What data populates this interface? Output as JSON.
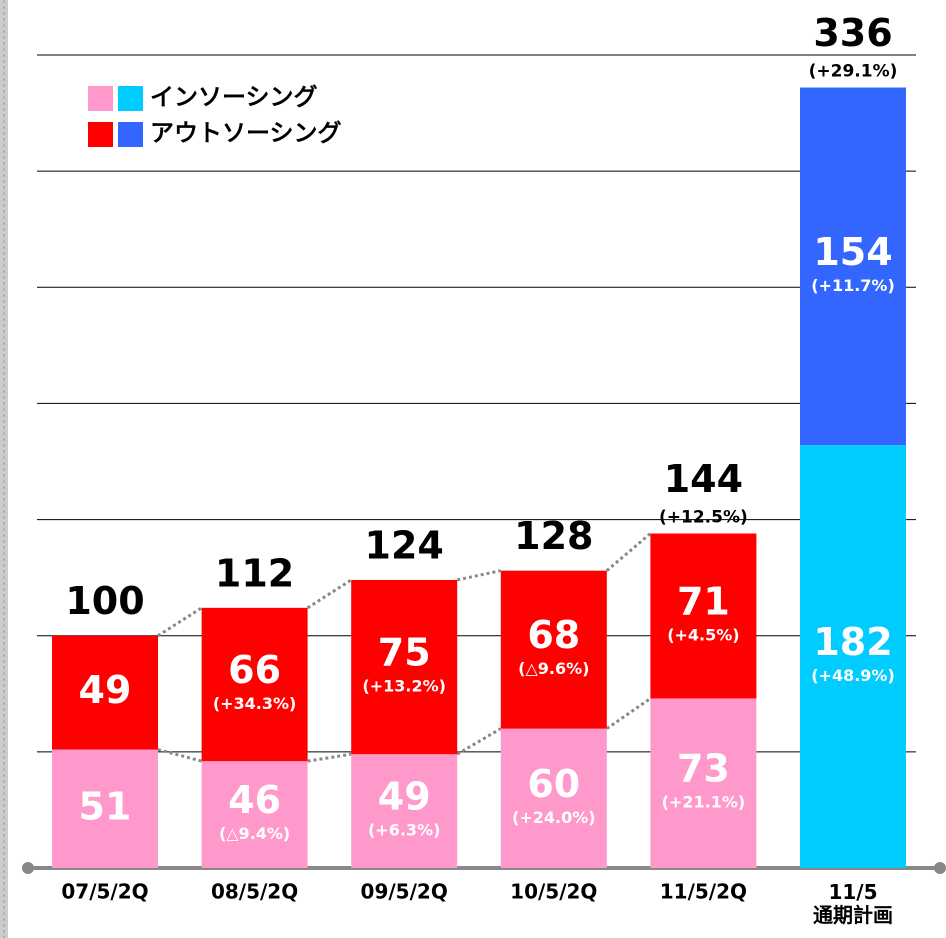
{
  "chart_data": {
    "type": "stacked-bar",
    "categories": [
      "07/5/2Q",
      "08/5/2Q",
      "09/5/2Q",
      "10/5/2Q",
      "11/5/2Q",
      "11/5\n通期計画"
    ],
    "series": [
      {
        "name": "インソーシング",
        "colors": [
          "#ff99cc",
          "#ff99cc",
          "#ff99cc",
          "#ff99cc",
          "#ff99cc",
          "#00ccff"
        ],
        "values": [
          51,
          46,
          49,
          60,
          73,
          182
        ],
        "growth_labels": [
          null,
          "(△9.4%)",
          "(+6.3%)",
          "(+24.0%)",
          "(+21.1%)",
          "(+48.9%)"
        ]
      },
      {
        "name": "アウトソーシング",
        "colors": [
          "#ff0000",
          "#ff0000",
          "#ff0000",
          "#ff0000",
          "#ff0000",
          "#3366ff"
        ],
        "values": [
          49,
          66,
          75,
          68,
          71,
          154
        ],
        "growth_labels": [
          null,
          "(+34.3%)",
          "(+13.2%)",
          "(△9.6%)",
          "(+4.5%)",
          "(+11.7%)"
        ]
      }
    ],
    "totals": [
      100,
      112,
      124,
      128,
      144,
      336
    ],
    "total_growth_labels": [
      null,
      null,
      null,
      null,
      "(+12.5%)",
      "(+29.1%)"
    ],
    "ylim": [
      0,
      350
    ],
    "yticks": [
      0,
      50,
      100,
      150,
      200,
      250,
      300,
      350
    ],
    "grid": true
  }
}
